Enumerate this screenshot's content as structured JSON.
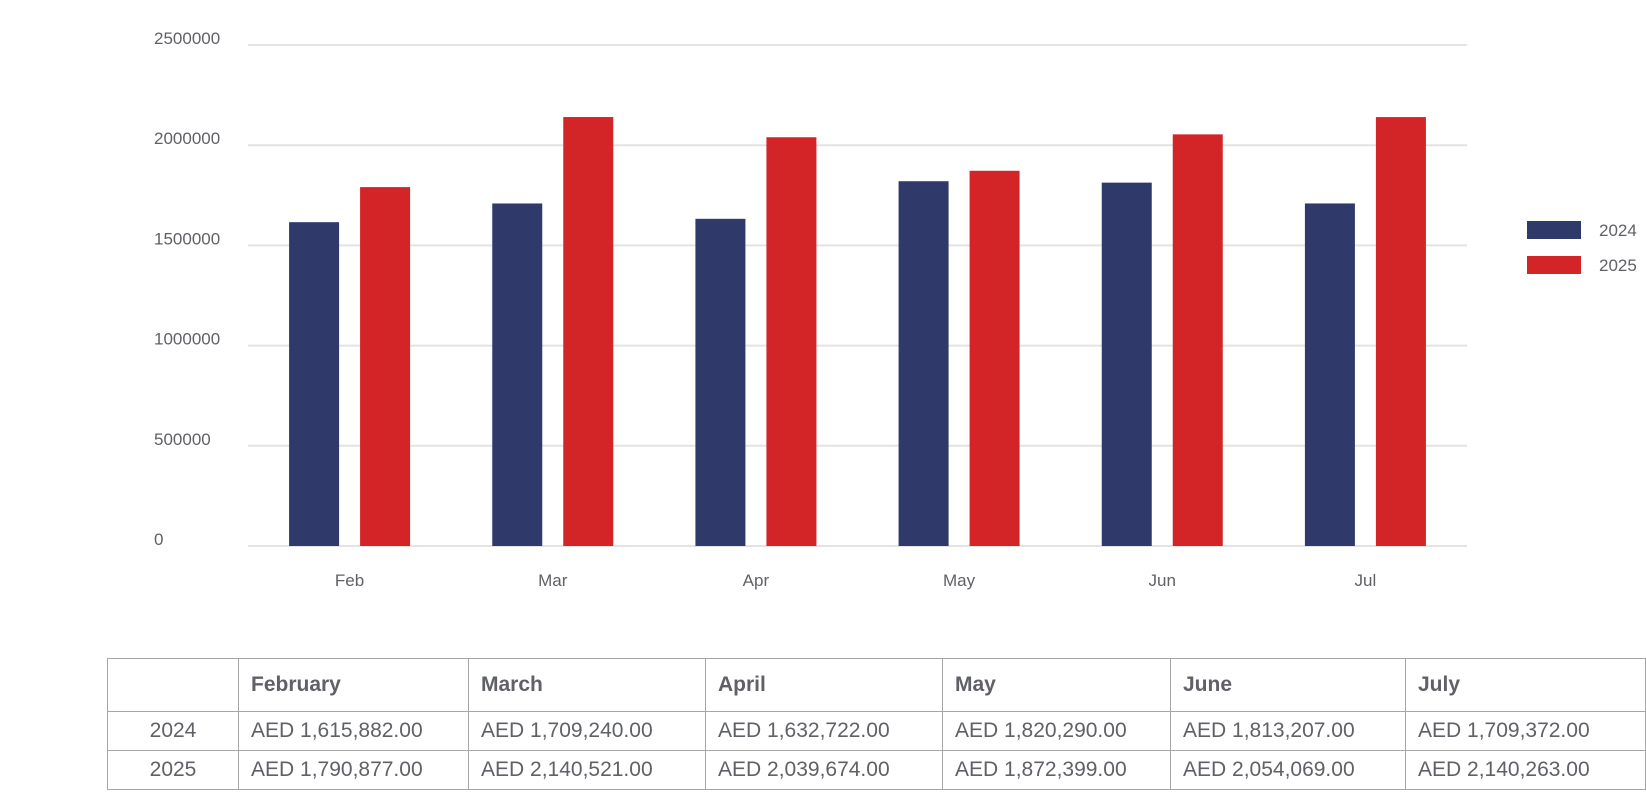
{
  "chart_data": {
    "type": "bar",
    "categories": [
      "Feb",
      "Mar",
      "Apr",
      "May",
      "Jun",
      "Jul"
    ],
    "series": [
      {
        "name": "2024",
        "color": "#2f3a6b",
        "values": [
          1615882,
          1709240,
          1632722,
          1820290,
          1813207,
          1709372
        ]
      },
      {
        "name": "2025",
        "color": "#d32527",
        "values": [
          1790877,
          2140521,
          2039674,
          1872399,
          2054069,
          2140263
        ]
      }
    ],
    "y_ticks": [
      "0",
      "500000",
      "1000000",
      "1500000",
      "2000000",
      "2500000"
    ],
    "ylim": [
      0,
      2500000
    ],
    "grid": true,
    "legend_position": "right"
  },
  "table": {
    "headers": [
      "",
      "February",
      "March",
      "April",
      "May",
      "June",
      "July"
    ],
    "rows": [
      {
        "label": "2024",
        "cells": [
          "AED 1,615,882.00",
          "AED 1,709,240.00",
          "AED 1,632,722.00",
          "AED 1,820,290.00",
          "AED 1,813,207.00",
          "AED 1,709,372.00"
        ]
      },
      {
        "label": "2025",
        "cells": [
          "AED 1,790,877.00",
          "AED 2,140,521.00",
          "AED 2,039,674.00",
          "AED 1,872,399.00",
          "AED 2,054,069.00",
          "AED 2,140,263.00"
        ]
      }
    ]
  }
}
